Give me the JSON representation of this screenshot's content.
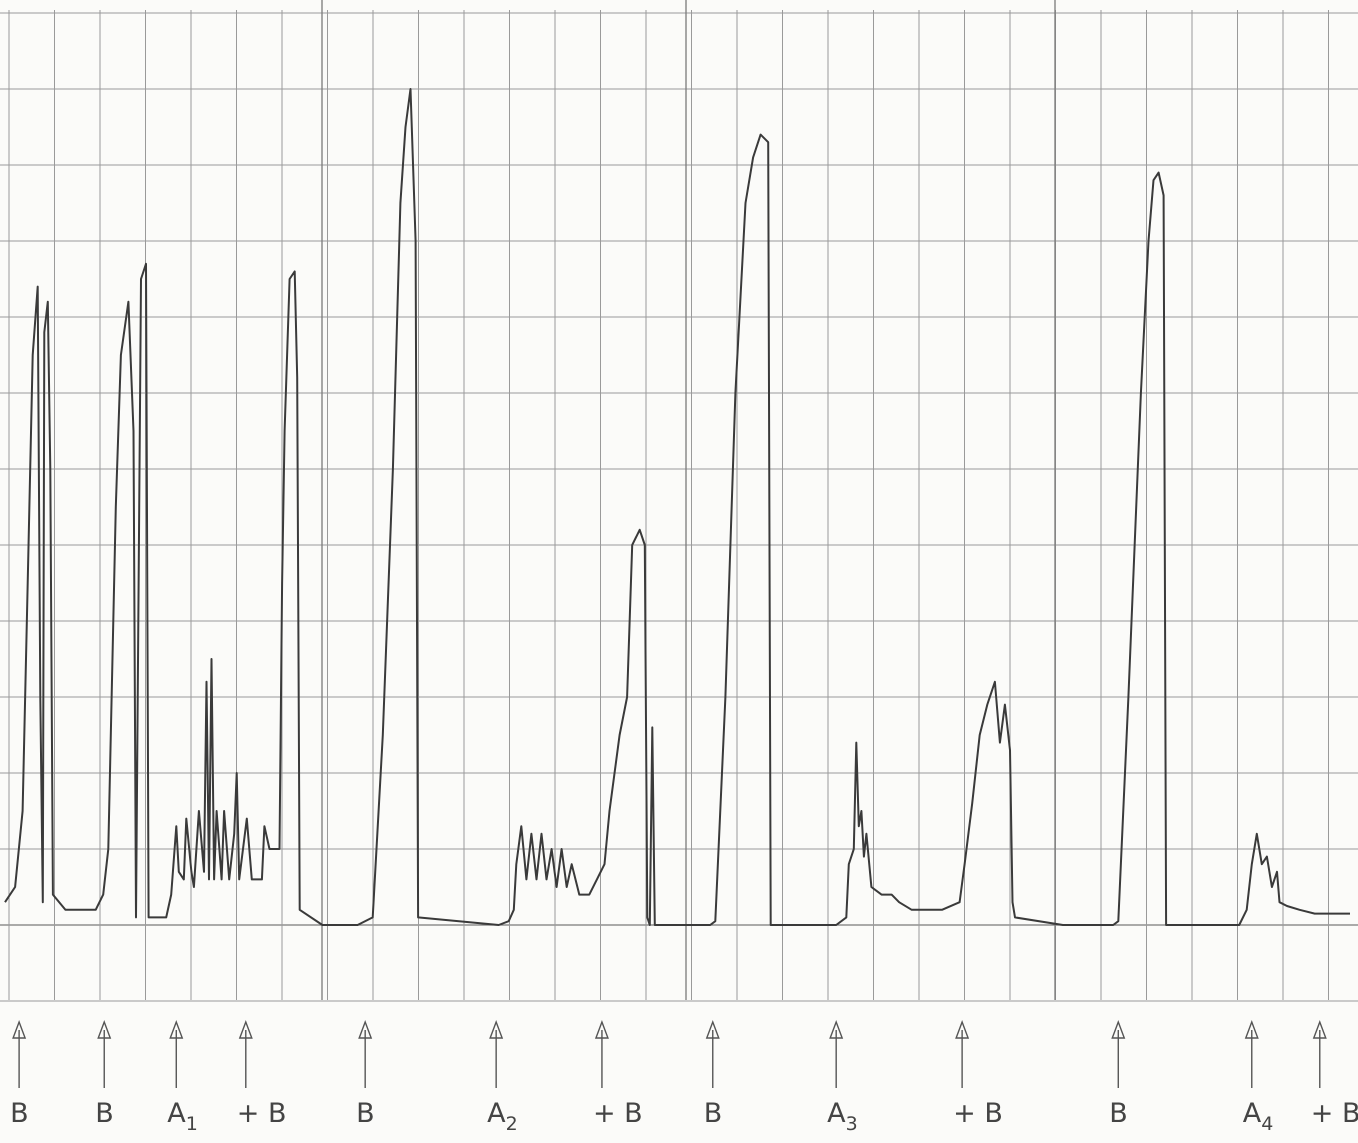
{
  "chart_data": {
    "type": "line",
    "title": "",
    "xlabel": "",
    "ylabel": "",
    "grid": true,
    "baseline": 0,
    "ylim": [
      0,
      12
    ],
    "xlim": [
      0,
      26.7
    ],
    "series": [
      {
        "points": [
          [
            0,
            0.3
          ],
          [
            0.2,
            0.5
          ],
          [
            0.35,
            1.5
          ],
          [
            0.45,
            4.5
          ],
          [
            0.55,
            7.5
          ],
          [
            0.65,
            8.4
          ],
          [
            0.7,
            3
          ],
          [
            0.75,
            0.3
          ],
          [
            0.78,
            7.8
          ],
          [
            0.85,
            8.2
          ],
          [
            0.9,
            6
          ],
          [
            0.95,
            0.4
          ],
          [
            1.2,
            0.2
          ],
          [
            1.8,
            0.2
          ],
          [
            1.95,
            0.4
          ],
          [
            2.05,
            1.0
          ],
          [
            2.2,
            5.5
          ],
          [
            2.3,
            7.5
          ],
          [
            2.45,
            8.2
          ],
          [
            2.55,
            6.5
          ],
          [
            2.6,
            0.1
          ],
          [
            2.7,
            8.5
          ],
          [
            2.8,
            8.7
          ],
          [
            2.85,
            0.1
          ],
          [
            3.2,
            0.1
          ],
          [
            3.3,
            0.4
          ],
          [
            3.4,
            1.3
          ],
          [
            3.45,
            0.7
          ],
          [
            3.55,
            0.6
          ],
          [
            3.6,
            1.4
          ],
          [
            3.7,
            0.7
          ],
          [
            3.75,
            0.5
          ],
          [
            3.85,
            1.5
          ],
          [
            3.95,
            0.7
          ],
          [
            4.0,
            3.2
          ],
          [
            4.05,
            0.6
          ],
          [
            4.1,
            3.5
          ],
          [
            4.15,
            0.6
          ],
          [
            4.2,
            1.5
          ],
          [
            4.3,
            0.6
          ],
          [
            4.35,
            1.5
          ],
          [
            4.45,
            0.6
          ],
          [
            4.55,
            1.2
          ],
          [
            4.6,
            2.0
          ],
          [
            4.65,
            0.6
          ],
          [
            4.8,
            1.4
          ],
          [
            4.9,
            0.6
          ],
          [
            5.1,
            0.6
          ],
          [
            5.15,
            1.3
          ],
          [
            5.25,
            1.0
          ],
          [
            5.45,
            1.0
          ],
          [
            5.5,
            4.5
          ],
          [
            5.55,
            6.5
          ],
          [
            5.65,
            8.5
          ],
          [
            5.75,
            8.6
          ],
          [
            5.8,
            7.2
          ],
          [
            5.85,
            0.2
          ],
          [
            6.3,
            0.0
          ],
          [
            7.0,
            0.0
          ],
          [
            7.3,
            0.1
          ],
          [
            7.5,
            2.5
          ],
          [
            7.7,
            6.0
          ],
          [
            7.85,
            9.5
          ],
          [
            7.95,
            10.5
          ],
          [
            8.05,
            11.0
          ],
          [
            8.15,
            9.0
          ],
          [
            8.2,
            0.1
          ],
          [
            9.8,
            0.0
          ],
          [
            10.0,
            0.05
          ],
          [
            10.1,
            0.2
          ],
          [
            10.15,
            0.8
          ],
          [
            10.25,
            1.3
          ],
          [
            10.35,
            0.6
          ],
          [
            10.45,
            1.2
          ],
          [
            10.55,
            0.6
          ],
          [
            10.65,
            1.2
          ],
          [
            10.75,
            0.6
          ],
          [
            10.85,
            1.0
          ],
          [
            10.95,
            0.5
          ],
          [
            11.05,
            1.0
          ],
          [
            11.15,
            0.5
          ],
          [
            11.25,
            0.8
          ],
          [
            11.4,
            0.4
          ],
          [
            11.6,
            0.4
          ],
          [
            11.75,
            0.6
          ],
          [
            11.9,
            0.8
          ],
          [
            12.0,
            1.5
          ],
          [
            12.2,
            2.5
          ],
          [
            12.35,
            3.0
          ],
          [
            12.45,
            5.0
          ],
          [
            12.6,
            5.2
          ],
          [
            12.7,
            5.0
          ],
          [
            12.75,
            0.1
          ],
          [
            12.8,
            0.0
          ],
          [
            12.85,
            2.6
          ],
          [
            12.9,
            0.0
          ],
          [
            13.5,
            0.0
          ],
          [
            14.0,
            0.0
          ],
          [
            14.1,
            0.05
          ],
          [
            14.3,
            3.0
          ],
          [
            14.5,
            7.0
          ],
          [
            14.7,
            9.5
          ],
          [
            14.85,
            10.1
          ],
          [
            15.0,
            10.4
          ],
          [
            15.15,
            10.3
          ],
          [
            15.2,
            0.0
          ],
          [
            16.5,
            0.0
          ],
          [
            16.7,
            0.1
          ],
          [
            16.75,
            0.8
          ],
          [
            16.85,
            1.0
          ],
          [
            16.9,
            2.4
          ],
          [
            16.95,
            1.3
          ],
          [
            17.0,
            1.5
          ],
          [
            17.05,
            0.9
          ],
          [
            17.1,
            1.2
          ],
          [
            17.2,
            0.5
          ],
          [
            17.4,
            0.4
          ],
          [
            17.6,
            0.4
          ],
          [
            17.75,
            0.3
          ],
          [
            18.0,
            0.2
          ],
          [
            18.4,
            0.2
          ],
          [
            18.6,
            0.2
          ],
          [
            18.95,
            0.3
          ],
          [
            19.05,
            0.8
          ],
          [
            19.2,
            1.6
          ],
          [
            19.35,
            2.5
          ],
          [
            19.5,
            2.9
          ],
          [
            19.65,
            3.2
          ],
          [
            19.75,
            2.4
          ],
          [
            19.85,
            2.9
          ],
          [
            19.95,
            2.3
          ],
          [
            20.0,
            0.3
          ],
          [
            20.05,
            0.1
          ],
          [
            21.0,
            0.0
          ],
          [
            22.0,
            0.0
          ],
          [
            22.1,
            0.05
          ],
          [
            22.3,
            3.0
          ],
          [
            22.55,
            7.0
          ],
          [
            22.7,
            9.0
          ],
          [
            22.8,
            9.8
          ],
          [
            22.9,
            9.9
          ],
          [
            23.0,
            9.6
          ],
          [
            23.05,
            0.0
          ],
          [
            24.5,
            0.0
          ],
          [
            24.65,
            0.2
          ],
          [
            24.75,
            0.8
          ],
          [
            24.85,
            1.2
          ],
          [
            24.95,
            0.8
          ],
          [
            25.05,
            0.9
          ],
          [
            25.15,
            0.5
          ],
          [
            25.25,
            0.7
          ],
          [
            25.3,
            0.3
          ],
          [
            25.45,
            0.25
          ],
          [
            25.7,
            0.2
          ],
          [
            26.0,
            0.15
          ],
          [
            26.7,
            0.15
          ]
        ]
      }
    ],
    "markers": [
      {
        "x": 0.28,
        "label": "B",
        "sub": ""
      },
      {
        "x": 1.97,
        "label": "B",
        "sub": ""
      },
      {
        "x": 3.4,
        "label": "A",
        "sub": "1"
      },
      {
        "x": 4.78,
        "label": "+ B",
        "sub": ""
      },
      {
        "x": 7.15,
        "label": "B",
        "sub": ""
      },
      {
        "x": 9.75,
        "label": "A",
        "sub": "2"
      },
      {
        "x": 11.85,
        "label": "+ B",
        "sub": ""
      },
      {
        "x": 14.05,
        "label": "B",
        "sub": ""
      },
      {
        "x": 16.5,
        "label": "A",
        "sub": "3"
      },
      {
        "x": 19.0,
        "label": "+ B",
        "sub": ""
      },
      {
        "x": 22.1,
        "label": "B",
        "sub": ""
      },
      {
        "x": 24.75,
        "label": "A",
        "sub": "4"
      },
      {
        "x": 26.1,
        "label": "+ B",
        "sub": ""
      }
    ]
  }
}
